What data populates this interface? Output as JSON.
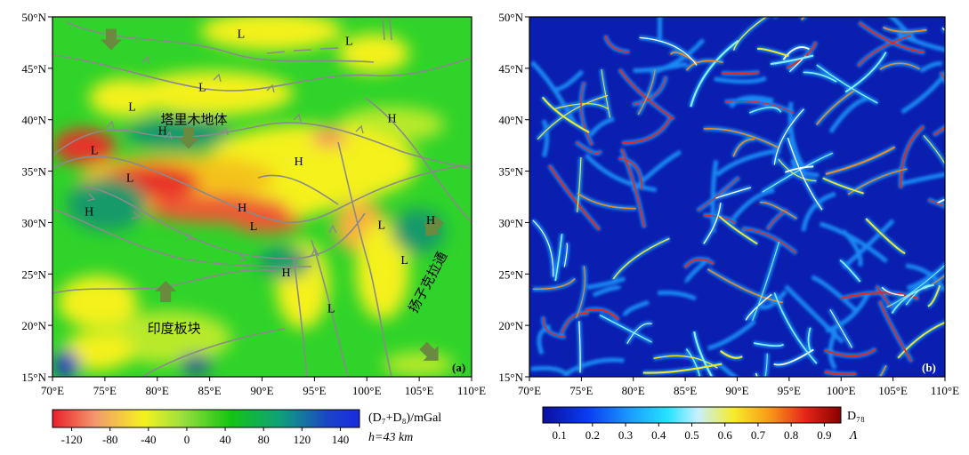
{
  "figure_a": {
    "panel_label": "(a)",
    "lat_ticks": [
      "50°N",
      "45°N",
      "40°N",
      "35°N",
      "30°N",
      "25°N",
      "20°N",
      "15°N"
    ],
    "lon_ticks": [
      "70°E",
      "75°E",
      "80°E",
      "85°E",
      "90°E",
      "95°E",
      "100°E",
      "105°E",
      "110°E"
    ],
    "map_labels": [
      {
        "text": "L",
        "lon": 88.0,
        "lat": 48.4
      },
      {
        "text": "L",
        "lon": 98.3,
        "lat": 47.7
      },
      {
        "text": "L",
        "lon": 84.3,
        "lat": 43.2
      },
      {
        "text": "L",
        "lon": 77.6,
        "lat": 41.3
      },
      {
        "text": "塔里木地体",
        "lon": 83.5,
        "lat": 40.0
      },
      {
        "text": "H",
        "lon": 80.5,
        "lat": 39.0
      },
      {
        "text": "H",
        "lon": 102.4,
        "lat": 40.2
      },
      {
        "text": "L",
        "lon": 74.0,
        "lat": 37.1
      },
      {
        "text": "H",
        "lon": 93.5,
        "lat": 36.0
      },
      {
        "text": "L",
        "lon": 77.4,
        "lat": 34.4
      },
      {
        "text": "H",
        "lon": 73.5,
        "lat": 31.1
      },
      {
        "text": "H",
        "lon": 88.1,
        "lat": 31.5
      },
      {
        "text": "L",
        "lon": 89.2,
        "lat": 29.7
      },
      {
        "text": "L",
        "lon": 101.4,
        "lat": 29.8
      },
      {
        "text": "H",
        "lon": 106.1,
        "lat": 30.3
      },
      {
        "text": "H",
        "lon": 92.3,
        "lat": 25.2
      },
      {
        "text": "L",
        "lon": 103.6,
        "lat": 26.4
      },
      {
        "text": "扬子克拉通",
        "lon": 106.2,
        "lat": 24.0
      },
      {
        "text": "L",
        "lon": 96.6,
        "lat": 21.7
      },
      {
        "text": "印度板块",
        "lon": 81.6,
        "lat": 19.7
      }
    ],
    "arrows": [
      {
        "lon": 75.6,
        "lat": 47.8,
        "dir": "down"
      },
      {
        "lon": 83.0,
        "lat": 38.2,
        "dir": "down"
      },
      {
        "lon": 80.8,
        "lat": 23.3,
        "dir": "up"
      },
      {
        "lon": 106.3,
        "lat": 29.5,
        "dir": "down-left"
      },
      {
        "lon": 106.1,
        "lat": 17.3,
        "dir": "down-right"
      }
    ],
    "colorbar": {
      "ticks": [
        "-120",
        "-80",
        "-40",
        "0",
        "40",
        "80",
        "120",
        "140"
      ],
      "title": "(D₇+D₈)/mGal",
      "subtitle": "h=43 km",
      "stops": [
        "#e8202a",
        "#f39a6e",
        "#f4f21e",
        "#9de03e",
        "#14c414",
        "#10a17a",
        "#1b44c8",
        "#1a2ae0"
      ]
    }
  },
  "figure_b": {
    "panel_label": "(b)",
    "lat_ticks": [
      "50°N",
      "45°N",
      "40°N",
      "35°N",
      "30°N",
      "25°N",
      "20°N",
      "15°N"
    ],
    "lon_ticks": [
      "70°E",
      "75°E",
      "80°E",
      "85°E",
      "90°E",
      "95°E",
      "100°E",
      "105°E",
      "110°E"
    ],
    "colorbar": {
      "ticks": [
        "0.1",
        "0.2",
        "0.3",
        "0.4",
        "0.5",
        "0.6",
        "0.7",
        "0.8",
        "0.9"
      ],
      "title": "D₇₈",
      "subtitle": "Λ",
      "stops": [
        "#0b0fa0",
        "#0a3cf0",
        "#1aa0ff",
        "#27e3ff",
        "#c6f0ff",
        "#f6ec2b",
        "#f89a18",
        "#e6261a",
        "#8a0000"
      ]
    }
  },
  "colors": {
    "map_green": "#2fd32a",
    "map_yellow": "#f4f11a",
    "map_red": "#e82828",
    "map_blue": "#1e3c9a",
    "fault_gray": "#8a8a8a",
    "lineament_blue": "#1224b4"
  }
}
